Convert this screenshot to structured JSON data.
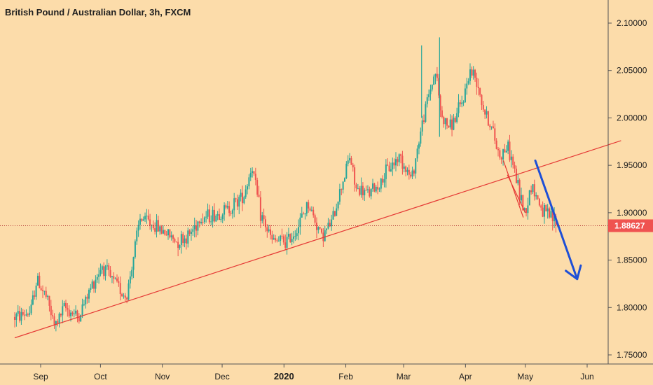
{
  "chart_data": {
    "type": "candlestick",
    "title": "British Pound / Australian Dollar, 3h, FXCM",
    "y_axis": {
      "ticks": [
        "2.10000",
        "2.05000",
        "2.00000",
        "1.95000",
        "1.90000",
        "1.85000",
        "1.80000",
        "1.75000"
      ],
      "tick_values": [
        2.1,
        2.05,
        2.0,
        1.95,
        1.9,
        1.85,
        1.8,
        1.75
      ],
      "range": [
        1.74,
        2.115
      ],
      "position": "right"
    },
    "x_axis": {
      "ticks": [
        "Sep",
        "Oct",
        "Nov",
        "Dec",
        "2020",
        "Feb",
        "Mar",
        "Apr",
        "May",
        "Jun"
      ],
      "bold_ticks": [
        "2020"
      ],
      "tick_dates": [
        "2019-09-01",
        "2019-10-01",
        "2019-11-01",
        "2019-12-01",
        "2020-01-01",
        "2020-02-01",
        "2020-03-01",
        "2020-04-01",
        "2020-05-01",
        "2020-06-01"
      ],
      "range": [
        "2019-08-19",
        "2020-06-30"
      ]
    },
    "current_price": "1.88627",
    "current_price_value": 1.88627,
    "price_path": [
      [
        "2019-08-19",
        1.79
      ],
      [
        "2019-08-27",
        1.795
      ],
      [
        "2019-08-30",
        1.83
      ],
      [
        "2019-09-04",
        1.81
      ],
      [
        "2019-09-08",
        1.78
      ],
      [
        "2019-09-13",
        1.8
      ],
      [
        "2019-09-20",
        1.79
      ],
      [
        "2019-09-27",
        1.825
      ],
      [
        "2019-10-02",
        1.845
      ],
      [
        "2019-10-06",
        1.83
      ],
      [
        "2019-10-10",
        1.822
      ],
      [
        "2019-10-14",
        1.81
      ],
      [
        "2019-10-18",
        1.86
      ],
      [
        "2019-10-21",
        1.895
      ],
      [
        "2019-10-25",
        1.89
      ],
      [
        "2019-11-02",
        1.88
      ],
      [
        "2019-11-08",
        1.87
      ],
      [
        "2019-11-14",
        1.875
      ],
      [
        "2019-11-20",
        1.895
      ],
      [
        "2019-11-28",
        1.898
      ],
      [
        "2019-12-05",
        1.905
      ],
      [
        "2019-12-12",
        1.92
      ],
      [
        "2019-12-16",
        1.95
      ],
      [
        "2019-12-20",
        1.9
      ],
      [
        "2019-12-26",
        1.87
      ],
      [
        "2020-01-03",
        1.87
      ],
      [
        "2020-01-08",
        1.885
      ],
      [
        "2020-01-13",
        1.91
      ],
      [
        "2020-01-20",
        1.875
      ],
      [
        "2020-01-25",
        1.89
      ],
      [
        "2020-01-30",
        1.93
      ],
      [
        "2020-02-03",
        1.96
      ],
      [
        "2020-02-06",
        1.925
      ],
      [
        "2020-02-12",
        1.92
      ],
      [
        "2020-02-18",
        1.93
      ],
      [
        "2020-02-22",
        1.945
      ],
      [
        "2020-02-28",
        1.96
      ],
      [
        "2020-03-05",
        1.935
      ],
      [
        "2020-03-09",
        1.98
      ],
      [
        "2020-03-13",
        2.02
      ],
      [
        "2020-03-17",
        2.05
      ],
      [
        "2020-03-20",
        2.0
      ],
      [
        "2020-03-24",
        1.99
      ],
      [
        "2020-03-27",
        2.0
      ],
      [
        "2020-03-31",
        2.02
      ],
      [
        "2020-04-03",
        2.05
      ],
      [
        "2020-04-07",
        2.04
      ],
      [
        "2020-04-10",
        2.01
      ],
      [
        "2020-04-14",
        1.99
      ],
      [
        "2020-04-18",
        1.96
      ],
      [
        "2020-04-22",
        1.97
      ],
      [
        "2020-04-25",
        1.95
      ],
      [
        "2020-04-28",
        1.92
      ],
      [
        "2020-05-01",
        1.9
      ],
      [
        "2020-05-04",
        1.93
      ],
      [
        "2020-05-07",
        1.915
      ],
      [
        "2020-05-10",
        1.9
      ],
      [
        "2020-05-14",
        1.895
      ],
      [
        "2020-05-18",
        1.886
      ]
    ],
    "spikes": [
      {
        "date": "2020-03-10",
        "high": 2.0765,
        "low": 2.0
      },
      {
        "date": "2020-03-19",
        "high": 2.085,
        "low": 1.98
      }
    ],
    "annotations": [
      {
        "type": "trendline",
        "color": "#e53935",
        "points": [
          [
            "2019-08-19",
            1.768
          ],
          [
            "2020-06-18",
            1.976
          ]
        ]
      },
      {
        "type": "line",
        "color": "#e53935",
        "points": [
          [
            "2020-04-20",
            1.955
          ],
          [
            "2020-04-30",
            1.895
          ]
        ]
      },
      {
        "type": "line",
        "color": "#e53935",
        "points": [
          [
            "2020-04-22",
            1.94
          ],
          [
            "2020-05-01",
            1.9
          ]
        ]
      },
      {
        "type": "arrow",
        "color": "#1e4fd6",
        "points": [
          [
            "2020-05-06",
            1.955
          ],
          [
            "2020-05-27",
            1.83
          ]
        ]
      },
      {
        "type": "hline-dotted",
        "color": "#b03030",
        "value": 1.88627
      }
    ],
    "colors": {
      "background": "#fcdcaa",
      "up_candle": "#26a69a",
      "down_candle": "#ef5350",
      "price_label_bg": "#ef5350",
      "trendline": "#e53935",
      "arrow": "#1e4fd6"
    },
    "grid": false,
    "legend": "none"
  }
}
